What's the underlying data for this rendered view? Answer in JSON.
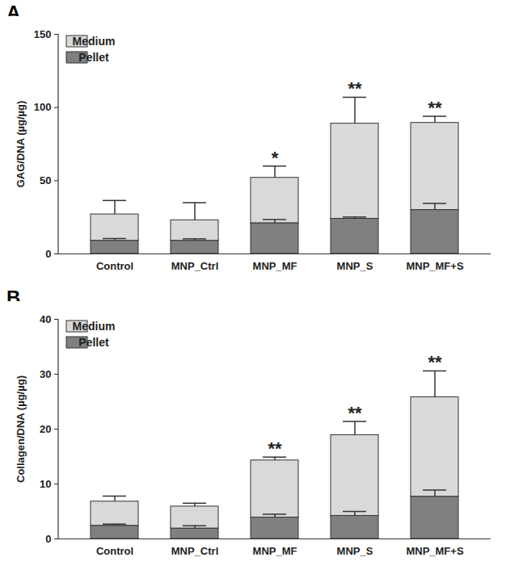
{
  "chart_data": [
    {
      "type": "bar",
      "title": "A",
      "stacked": true,
      "legend": "top-left",
      "grid": false,
      "y_label": "GAG/DNA (µg/µg)",
      "categories": [
        "Control",
        "MNP_Ctrl",
        "MNP_MF",
        "MNP_S",
        "MNP_MF+S"
      ],
      "series": [
        {
          "name": "Pellet",
          "color": "#808080",
          "values": [
            9,
            9,
            21,
            24,
            30
          ],
          "errors": [
            1.5,
            1.3,
            2.5,
            1.2,
            4.5
          ]
        },
        {
          "name": "Medium",
          "color": "#d9d9d9",
          "values": [
            18,
            14,
            31,
            65,
            59.5
          ],
          "errors": [
            9.5,
            12,
            8,
            18,
            4.5
          ]
        }
      ],
      "annotations": [
        null,
        null,
        "*",
        "**",
        "**"
      ],
      "ylim": [
        0,
        150
      ],
      "yticks": [
        0,
        50,
        100,
        150
      ]
    },
    {
      "type": "bar",
      "title": "B",
      "stacked": true,
      "legend": "top-left",
      "grid": false,
      "y_label": "Collagen/DNA (µg/µg)",
      "categories": [
        "Control",
        "MNP_Ctrl",
        "MNP_MF",
        "MNP_S",
        "MNP_MF+S"
      ],
      "series": [
        {
          "name": "Pellet",
          "color": "#808080",
          "values": [
            2.4,
            1.9,
            3.9,
            4.2,
            7.7
          ],
          "errors": [
            0.3,
            0.5,
            0.6,
            0.8,
            1.2
          ]
        },
        {
          "name": "Medium",
          "color": "#d9d9d9",
          "values": [
            4.4,
            4.0,
            10.4,
            14.7,
            18.1
          ],
          "errors": [
            1.0,
            0.6,
            0.6,
            2.5,
            4.8
          ]
        }
      ],
      "annotations": [
        null,
        null,
        "**",
        "**",
        "**"
      ],
      "ylim": [
        0,
        40
      ],
      "yticks": [
        0,
        10,
        20,
        30,
        40
      ]
    }
  ]
}
